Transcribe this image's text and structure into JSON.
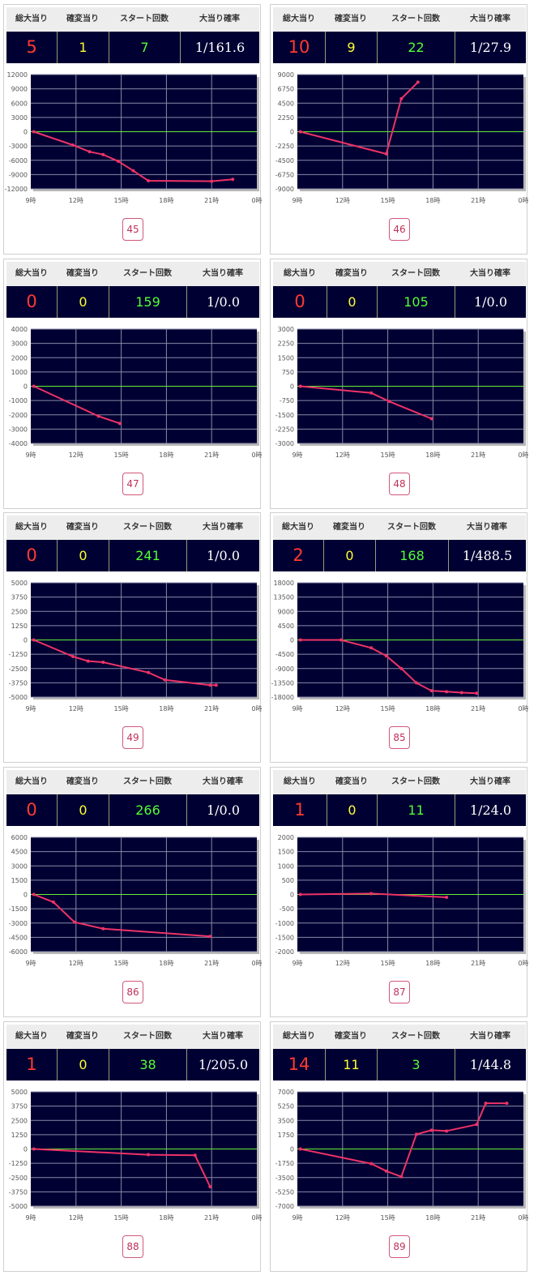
{
  "headers": {
    "total": "総大当り",
    "kakuhen": "確変当り",
    "start": "スタート回数",
    "rate": "大当り確率"
  },
  "x_ticks": [
    "9時",
    "12時",
    "15時",
    "18時",
    "21時",
    "0時"
  ],
  "colors": {
    "plot_bg": "#000033",
    "line": "#ee3366",
    "zero_line": "#66ee33",
    "grid": "#8a8aa8"
  },
  "cards": [
    {
      "number": "45",
      "total": "5",
      "kakuhen": "1",
      "start": "7",
      "rate": "1/161.6"
    },
    {
      "number": "46",
      "total": "10",
      "kakuhen": "9",
      "start": "22",
      "rate": "1/27.9"
    },
    {
      "number": "47",
      "total": "0",
      "kakuhen": "0",
      "start": "159",
      "rate": "1/0.0"
    },
    {
      "number": "48",
      "total": "0",
      "kakuhen": "0",
      "start": "105",
      "rate": "1/0.0"
    },
    {
      "number": "49",
      "total": "0",
      "kakuhen": "0",
      "start": "241",
      "rate": "1/0.0"
    },
    {
      "number": "85",
      "total": "2",
      "kakuhen": "0",
      "start": "168",
      "rate": "1/488.5"
    },
    {
      "number": "86",
      "total": "0",
      "kakuhen": "0",
      "start": "266",
      "rate": "1/0.0"
    },
    {
      "number": "87",
      "total": "1",
      "kakuhen": "0",
      "start": "11",
      "rate": "1/24.0"
    },
    {
      "number": "88",
      "total": "1",
      "kakuhen": "0",
      "start": "38",
      "rate": "1/205.0"
    },
    {
      "number": "89",
      "total": "14",
      "kakuhen": "11",
      "start": "3",
      "rate": "1/44.8"
    }
  ],
  "chart_data": [
    {
      "type": "line",
      "xlabel": "",
      "ylabel": "",
      "xlim": [
        9,
        24
      ],
      "y_ticks": [
        12000,
        9000,
        6000,
        3000,
        0,
        -3000,
        -6000,
        -9000,
        -12000
      ],
      "ylim": [
        -12000,
        12000
      ],
      "points": [
        [
          9.2,
          0
        ],
        [
          11.8,
          -2800
        ],
        [
          12.9,
          -4200
        ],
        [
          13.8,
          -4800
        ],
        [
          14.8,
          -6200
        ],
        [
          15.8,
          -8200
        ],
        [
          16.8,
          -10300
        ],
        [
          21.0,
          -10400
        ],
        [
          22.4,
          -10000
        ]
      ]
    },
    {
      "type": "line",
      "xlabel": "",
      "ylabel": "",
      "xlim": [
        9,
        24
      ],
      "y_ticks": [
        9000,
        6750,
        4500,
        2250,
        0,
        -2250,
        -4500,
        -6750,
        -9000
      ],
      "ylim": [
        -9000,
        9000
      ],
      "points": [
        [
          9.2,
          0
        ],
        [
          14.9,
          -3500
        ],
        [
          15.9,
          5200
        ],
        [
          17.0,
          7800
        ]
      ]
    },
    {
      "type": "line",
      "xlabel": "",
      "ylabel": "",
      "xlim": [
        9,
        24
      ],
      "y_ticks": [
        4000,
        3000,
        2000,
        1000,
        0,
        -1000,
        -2000,
        -3000,
        -4000
      ],
      "ylim": [
        -4000,
        4000
      ],
      "points": [
        [
          9.2,
          0
        ],
        [
          13.5,
          -2100
        ],
        [
          14.9,
          -2600
        ]
      ]
    },
    {
      "type": "line",
      "xlabel": "",
      "ylabel": "",
      "xlim": [
        9,
        24
      ],
      "y_ticks": [
        3000,
        2250,
        1500,
        750,
        0,
        -750,
        -1500,
        -2250,
        -3000
      ],
      "ylim": [
        -3000,
        3000
      ],
      "points": [
        [
          9.2,
          0
        ],
        [
          13.9,
          -350
        ],
        [
          15.1,
          -800
        ],
        [
          17.9,
          -1700
        ]
      ]
    },
    {
      "type": "line",
      "xlabel": "",
      "ylabel": "",
      "xlim": [
        9,
        24
      ],
      "y_ticks": [
        5000,
        3750,
        2500,
        1250,
        0,
        -1250,
        -2500,
        -3750,
        -5000
      ],
      "ylim": [
        -5000,
        5000
      ],
      "points": [
        [
          9.2,
          0
        ],
        [
          11.8,
          -1450
        ],
        [
          12.8,
          -1850
        ],
        [
          13.8,
          -1950
        ],
        [
          16.8,
          -2850
        ],
        [
          17.9,
          -3500
        ],
        [
          20.9,
          -3950
        ],
        [
          21.3,
          -3950
        ]
      ]
    },
    {
      "type": "line",
      "xlabel": "",
      "ylabel": "",
      "xlim": [
        9,
        24
      ],
      "y_ticks": [
        18000,
        13500,
        9000,
        4500,
        0,
        -4500,
        -9000,
        -13500,
        -18000
      ],
      "ylim": [
        -18000,
        18000
      ],
      "points": [
        [
          9.2,
          0
        ],
        [
          11.9,
          0
        ],
        [
          13.9,
          -2500
        ],
        [
          14.9,
          -5000
        ],
        [
          15.9,
          -9000
        ],
        [
          16.9,
          -13500
        ],
        [
          17.9,
          -16000
        ],
        [
          18.9,
          -16300
        ],
        [
          19.9,
          -16600
        ],
        [
          20.9,
          -16800
        ]
      ]
    },
    {
      "type": "line",
      "xlabel": "",
      "ylabel": "",
      "xlim": [
        9,
        24
      ],
      "y_ticks": [
        6000,
        4500,
        3000,
        1500,
        0,
        -1500,
        -3000,
        -4500,
        -6000
      ],
      "ylim": [
        -6000,
        6000
      ],
      "points": [
        [
          9.2,
          0
        ],
        [
          10.5,
          -800
        ],
        [
          11.9,
          -2900
        ],
        [
          13.8,
          -3600
        ],
        [
          20.9,
          -4400
        ]
      ]
    },
    {
      "type": "line",
      "xlabel": "",
      "ylabel": "",
      "xlim": [
        9,
        24
      ],
      "y_ticks": [
        2000,
        1500,
        1000,
        500,
        0,
        -500,
        -1000,
        -1500,
        -2000
      ],
      "ylim": [
        -2000,
        2000
      ],
      "points": [
        [
          9.2,
          0
        ],
        [
          13.9,
          30
        ],
        [
          18.9,
          -100
        ]
      ]
    },
    {
      "type": "line",
      "xlabel": "",
      "ylabel": "",
      "xlim": [
        9,
        24
      ],
      "y_ticks": [
        5000,
        3750,
        2500,
        1250,
        0,
        -1250,
        -2500,
        -3750,
        -5000
      ],
      "ylim": [
        -5000,
        5000
      ],
      "points": [
        [
          9.2,
          0
        ],
        [
          16.8,
          -500
        ],
        [
          19.9,
          -550
        ],
        [
          20.9,
          -3300
        ]
      ]
    },
    {
      "type": "line",
      "xlabel": "",
      "ylabel": "",
      "xlim": [
        9,
        24
      ],
      "y_ticks": [
        7000,
        5250,
        3500,
        1750,
        0,
        -1750,
        -3500,
        -5250,
        -7000
      ],
      "ylim": [
        -7000,
        7000
      ],
      "points": [
        [
          9.2,
          0
        ],
        [
          13.9,
          -1800
        ],
        [
          14.9,
          -2700
        ],
        [
          15.9,
          -3400
        ],
        [
          16.9,
          1800
        ],
        [
          17.9,
          2300
        ],
        [
          18.9,
          2200
        ],
        [
          20.9,
          3000
        ],
        [
          21.5,
          5600
        ],
        [
          22.9,
          5600
        ]
      ]
    }
  ]
}
